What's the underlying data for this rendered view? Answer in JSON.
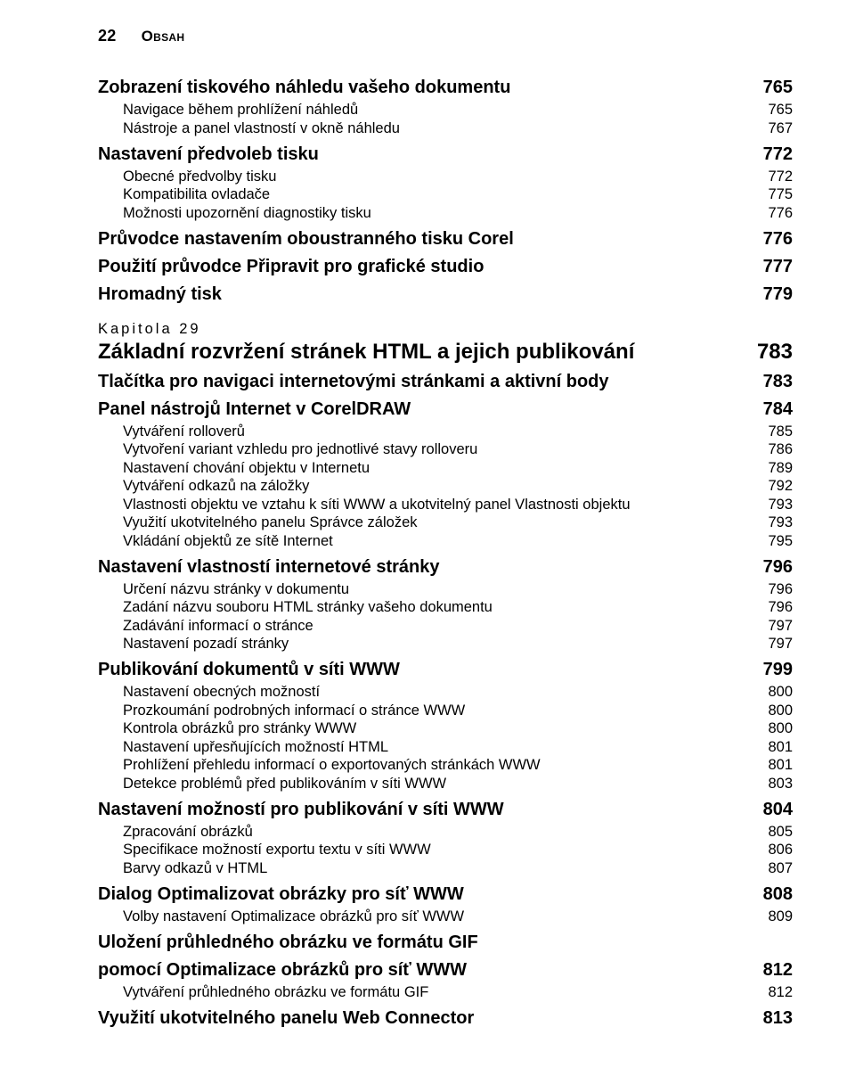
{
  "page_number": "22",
  "header_label": "Obsah",
  "colors": {
    "background": "#ffffff",
    "text": "#000000"
  },
  "typography": {
    "font_family": "Segoe UI, Myriad Pro, Arial, sans-serif",
    "header_fontsize_pt": 13,
    "chapter_title_fontsize_pt": 18,
    "section_fontsize_pt": 15,
    "normal_fontsize_pt": 12,
    "sub_fontsize_pt": 12
  },
  "entries": [
    {
      "level": "section",
      "text": "Zobrazení tiskového náhledu vašeho dokumentu",
      "page": "765"
    },
    {
      "level": "sub",
      "text": "Navigace během prohlížení náhledů",
      "page": "765"
    },
    {
      "level": "sub",
      "text": "Nástroje a panel vlastností v okně náhledu",
      "page": "767"
    },
    {
      "level": "section",
      "text": "Nastavení předvoleb tisku",
      "page": "772"
    },
    {
      "level": "sub",
      "text": "Obecné předvolby tisku",
      "page": "772"
    },
    {
      "level": "sub",
      "text": "Kompatibilita ovladače",
      "page": "775"
    },
    {
      "level": "sub",
      "text": "Možnosti upozornění diagnostiky tisku",
      "page": "776"
    },
    {
      "level": "section",
      "text": "Průvodce nastavením oboustranného tisku Corel",
      "page": "776"
    },
    {
      "level": "section",
      "text": "Použití průvodce Připravit pro grafické studio",
      "page": "777"
    },
    {
      "level": "section",
      "text": "Hromadný tisk",
      "page": "779"
    },
    {
      "level": "chapter-label",
      "text": "Kapitola 29"
    },
    {
      "level": "chapter-title",
      "text": "Základní rozvržení stránek HTML a jejich publikování",
      "page": "783"
    },
    {
      "level": "section",
      "text": "Tlačítka pro navigaci internetovými stránkami a aktivní body",
      "page": "783"
    },
    {
      "level": "section",
      "text": "Panel nástrojů Internet v CorelDRAW",
      "page": "784"
    },
    {
      "level": "sub",
      "text": "Vytváření rolloverů",
      "page": "785"
    },
    {
      "level": "sub",
      "text": "Vytvoření variant vzhledu pro jednotlivé stavy rolloveru",
      "page": "786"
    },
    {
      "level": "sub",
      "text": "Nastavení chování objektu v Internetu",
      "page": "789"
    },
    {
      "level": "sub",
      "text": "Vytváření odkazů na záložky",
      "page": "792"
    },
    {
      "level": "sub",
      "text": "Vlastnosti objektu ve vztahu k síti WWW a ukotvitelný panel Vlastnosti objektu",
      "page": "793"
    },
    {
      "level": "sub",
      "text": "Využití ukotvitelného panelu Správce záložek",
      "page": "793"
    },
    {
      "level": "sub",
      "text": "Vkládání objektů ze sítě Internet",
      "page": "795"
    },
    {
      "level": "section",
      "text": "Nastavení vlastností internetové stránky",
      "page": "796"
    },
    {
      "level": "sub",
      "text": "Určení názvu stránky v dokumentu",
      "page": "796"
    },
    {
      "level": "sub",
      "text": "Zadání názvu souboru HTML stránky vašeho dokumentu",
      "page": "796"
    },
    {
      "level": "sub",
      "text": "Zadávání informací o stránce",
      "page": "797"
    },
    {
      "level": "sub",
      "text": "Nastavení pozadí stránky",
      "page": "797"
    },
    {
      "level": "section",
      "text": "Publikování dokumentů v síti WWW",
      "page": "799"
    },
    {
      "level": "sub",
      "text": "Nastavení obecných možností",
      "page": "800"
    },
    {
      "level": "sub",
      "text": "Prozkoumání podrobných informací o stránce WWW",
      "page": "800"
    },
    {
      "level": "sub",
      "text": "Kontrola obrázků pro stránky WWW",
      "page": "800"
    },
    {
      "level": "sub",
      "text": "Nastavení upřesňujících možností HTML",
      "page": "801"
    },
    {
      "level": "sub",
      "text": "Prohlížení přehledu informací o exportovaných stránkách WWW",
      "page": "801"
    },
    {
      "level": "sub",
      "text": "Detekce problémů před publikováním v síti WWW",
      "page": "803"
    },
    {
      "level": "section",
      "text": "Nastavení možností pro publikování v síti WWW",
      "page": "804"
    },
    {
      "level": "sub",
      "text": "Zpracování obrázků",
      "page": "805"
    },
    {
      "level": "sub",
      "text": "Specifikace možností exportu textu v síti WWW",
      "page": "806"
    },
    {
      "level": "sub",
      "text": "Barvy odkazů v HTML",
      "page": "807"
    },
    {
      "level": "section",
      "text": "Dialog Optimalizovat obrázky pro síť WWW",
      "page": "808"
    },
    {
      "level": "sub",
      "text": "Volby nastavení Optimalizace obrázků pro síť WWW",
      "page": "809"
    },
    {
      "level": "section",
      "text": "Uložení průhledného obrázku ve formátu GIF",
      "page": ""
    },
    {
      "level": "section",
      "text": "pomocí Optimalizace obrázků pro síť WWW",
      "page": "812"
    },
    {
      "level": "sub",
      "text": "Vytváření průhledného obrázku ve formátu GIF",
      "page": "812"
    },
    {
      "level": "section",
      "text": "Využití ukotvitelného panelu Web Connector",
      "page": "813"
    }
  ]
}
